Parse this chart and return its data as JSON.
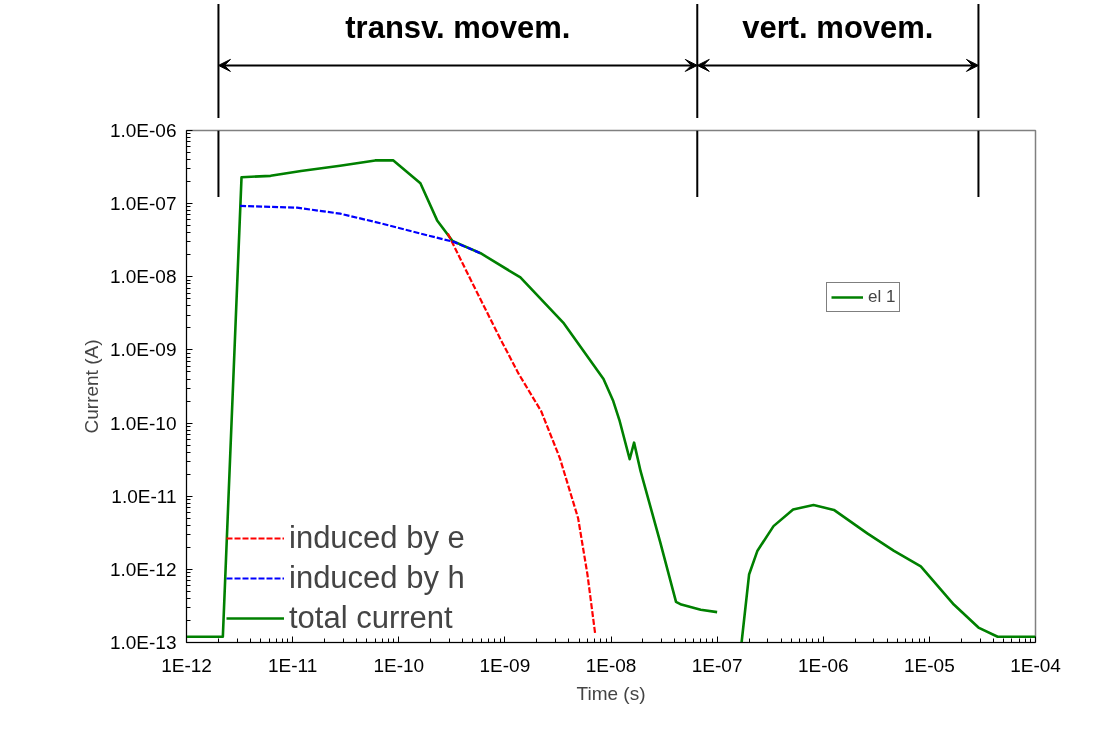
{
  "chart_data": {
    "type": "line",
    "xlabel": "Time (s)",
    "ylabel": "Current (A)",
    "log": "xy",
    "grid": false,
    "legend": "bottom left",
    "marker": "none",
    "xlim": [
      1e-12,
      0.0001
    ],
    "xticks": [
      {
        "value": 1e-12,
        "label": "1E-12"
      },
      {
        "value": 1e-11,
        "label": "1E-11"
      },
      {
        "value": 1e-10,
        "label": "1E-10"
      },
      {
        "value": 1e-09,
        "label": "1E-09"
      },
      {
        "value": 1e-08,
        "label": "1E-08"
      },
      {
        "value": 1e-07,
        "label": "1E-07"
      },
      {
        "value": 1e-06,
        "label": "1E-06"
      },
      {
        "value": 1e-05,
        "label": "1E-05"
      },
      {
        "value": 0.0001,
        "label": "1E-04"
      }
    ],
    "ylim": [
      1e-13,
      1e-06
    ],
    "yticks": [
      {
        "value": 1e-13,
        "label": "1.0E-13"
      },
      {
        "value": 1e-12,
        "label": "1.0E-12"
      },
      {
        "value": 1e-11,
        "label": "1.0E-11"
      },
      {
        "value": 1e-10,
        "label": "1.0E-10"
      },
      {
        "value": 1e-09,
        "label": "1.0E-09"
      },
      {
        "value": 1e-08,
        "label": "1.0E-08"
      },
      {
        "value": 1e-07,
        "label": "1.0E-07"
      },
      {
        "value": 1e-06,
        "label": "1.0E-06"
      }
    ],
    "series": [
      {
        "name": "induced by e",
        "color": "#ff0000",
        "line_style": "dashed",
        "x": [
          2.9e-10,
          5e-10,
          9.1e-10,
          1.35e-09,
          2.2e-09,
          3.3e-09,
          4.9e-09,
          6e-09,
          7.1e-09
        ],
        "values": [
          3.9e-08,
          7.9e-09,
          1.4e-09,
          4.7e-10,
          1.45e-10,
          3.3e-11,
          5e-12,
          8.5e-13,
          1.3e-13
        ]
      },
      {
        "name": "induced by h",
        "color": "#0000ff",
        "line_style": "dashed",
        "x": [
          3.2e-12,
          1.1e-11,
          2.8e-11,
          6.7e-11,
          1.6e-10,
          3.3e-10,
          5.9e-10
        ],
        "values": [
          9.3e-08,
          8.8e-08,
          7.3e-08,
          5.4e-08,
          3.9e-08,
          3e-08,
          2.1e-08
        ]
      },
      {
        "name": "total current",
        "color": "#008000",
        "line_style": "solid",
        "x": [
          1e-12,
          2.2e-12,
          3.3e-12,
          6.2e-12,
          1.2e-11,
          2.8e-11,
          6e-11,
          8.9e-11,
          1.6e-10,
          2.3e-10,
          3.2e-10,
          5.9e-10,
          1.4e-09,
          3.6e-09,
          8.5e-09,
          1.05e-08,
          1.2e-08,
          1.5e-08,
          1.65e-08,
          1.9e-08,
          2.9e-08,
          4.1e-08,
          4.6e-08,
          7e-08,
          1e-07,
          1.3e-07,
          1.7e-07,
          2e-07,
          2.4e-07,
          3.4e-07,
          5.2e-07,
          8.1e-07,
          1.26e-06,
          2.6e-06,
          4.6e-06,
          8.3e-06,
          1.7e-05,
          2.9e-05,
          4.4e-05,
          0.0001
        ],
        "values": [
          1.2e-13,
          1.2e-13,
          2.3e-07,
          2.4e-07,
          2.8e-07,
          3.3e-07,
          3.9e-07,
          3.9e-07,
          1.9e-07,
          5.9e-08,
          3.1e-08,
          2.1e-08,
          9.8e-09,
          2.3e-09,
          4e-10,
          2e-10,
          1.1e-10,
          3.2e-11,
          5.4e-11,
          2.2e-11,
          2.4e-12,
          3.6e-13,
          3.3e-13,
          2.8e-13,
          2.6e-13,
          null,
          1e-13,
          8.5e-13,
          1.8e-12,
          3.9e-12,
          6.6e-12,
          7.6e-12,
          6.5e-12,
          3.1e-12,
          1.8e-12,
          1.1e-12,
          3.3e-13,
          1.6e-13,
          1.2e-13,
          1.2e-13
        ]
      }
    ],
    "ref_lines": [
      {
        "axis": "x",
        "value": 2e-12,
        "color": "#000000"
      },
      {
        "axis": "x",
        "value": 6.5e-08,
        "color": "#000000"
      },
      {
        "axis": "x",
        "value": 2.9e-05,
        "color": "#000000"
      }
    ],
    "annotations": [
      "transv. movem.",
      "vert. movem.",
      "el 1"
    ]
  }
}
